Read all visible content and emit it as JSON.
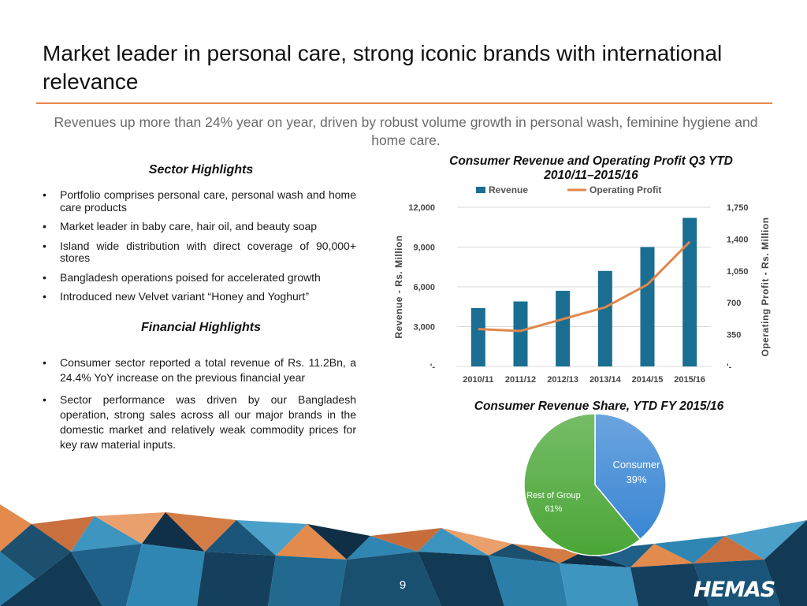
{
  "title": "Market leader in personal care, strong iconic brands with international relevance",
  "subtitle": "Revenues up more than 24% year on year, driven by robust volume growth in personal wash, feminine hygiene and home care.",
  "sector": {
    "heading": "Sector Highlights",
    "bullets": [
      "Portfolio comprises personal care, personal wash and home care products",
      "Market leader in baby care, hair oil, and beauty soap",
      "Island wide distribution with direct coverage of 90,000+ stores",
      "Bangladesh operations poised for accelerated growth",
      "Introduced new Velvet variant “Honey and Yoghurt”"
    ]
  },
  "financial": {
    "heading": "Financial Highlights",
    "bullets": [
      "Consumer sector reported a total revenue of Rs. 11.2Bn, a 24.4% YoY increase on the previous financial year",
      "Sector performance was driven by our Bangladesh operation, strong sales across all our major brands in the domestic market and relatively weak commodity prices for key raw material inputs."
    ]
  },
  "chart_data": [
    {
      "type": "bar",
      "title": "Consumer Revenue and Operating Profit Q3 YTD 2010/11–2015/16",
      "categories": [
        "2010/11",
        "2011/12",
        "2012/13",
        "2013/14",
        "2014/15",
        "2015/16"
      ],
      "series": [
        {
          "name": "Revenue",
          "type": "bar",
          "axis": "left",
          "color": "#1a6e92",
          "values": [
            4400,
            4900,
            5700,
            7200,
            9000,
            11200
          ]
        },
        {
          "name": "Operating Profit",
          "type": "line",
          "axis": "right",
          "color": "#e0874a",
          "values": [
            410,
            390,
            520,
            650,
            900,
            1370
          ]
        }
      ],
      "ylabel": "Revenue - Rs. Million",
      "ylabel_right": "Operating Profit - Rs. Million",
      "ylim": [
        0,
        12000
      ],
      "ylim_right": [
        0,
        1750
      ],
      "yticks": [
        "'-",
        "3,000",
        "6,000",
        "9,000",
        "12,000"
      ],
      "yticks_right": [
        "'-",
        "350",
        "700",
        "1,050",
        "1,400",
        "1,750"
      ],
      "grid": true,
      "legend": "top"
    },
    {
      "type": "pie",
      "title": "Consumer Revenue Share, YTD FY 2015/16",
      "slices": [
        {
          "label": "Consumer",
          "pct_label": "39%",
          "value": 39,
          "color": "#3a86d4"
        },
        {
          "label": "Rest of Group",
          "pct_label": "61%",
          "value": 61,
          "color": "#4aa636"
        }
      ]
    }
  ],
  "footer": {
    "page": "9",
    "logo": "HEMAS"
  }
}
